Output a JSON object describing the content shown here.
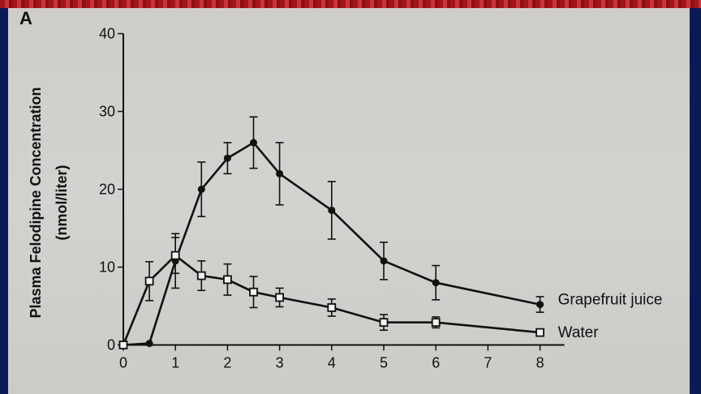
{
  "panel_label": "A",
  "chart_data": {
    "type": "line",
    "title": "",
    "xlabel": "",
    "ylabel": "Plasma Felodipine Concentration (nmol/liter)",
    "ylabel_lines": [
      "Plasma Felodipine Concentration",
      "(nmol/liter)"
    ],
    "xlim": [
      0,
      8
    ],
    "ylim": [
      0,
      40
    ],
    "x_ticks": [
      0,
      1,
      2,
      3,
      4,
      5,
      6,
      7,
      8
    ],
    "y_ticks": [
      0,
      10,
      20,
      30,
      40
    ],
    "grid": false,
    "legend_placement": "inline-right",
    "series": [
      {
        "name": "Grapefruit juice",
        "marker": "filled-circle",
        "color": "#111111",
        "x": [
          0,
          0.5,
          1,
          1.5,
          2,
          2.5,
          3,
          4,
          5,
          6,
          8
        ],
        "y": [
          0,
          0.2,
          10.8,
          20,
          24,
          26,
          22,
          17.3,
          10.8,
          8,
          5.2
        ],
        "err": [
          0,
          0,
          3.5,
          3.5,
          2,
          3.3,
          4,
          3.7,
          2.4,
          2.2,
          1
        ]
      },
      {
        "name": "Water",
        "marker": "open-square",
        "color": "#111111",
        "x": [
          0,
          0.5,
          1,
          1.5,
          2,
          2.5,
          3,
          4,
          5,
          6,
          8
        ],
        "y": [
          0,
          8.2,
          11.5,
          8.9,
          8.4,
          6.8,
          6.1,
          4.8,
          2.9,
          2.9,
          1.6
        ],
        "err": [
          0,
          2.5,
          2.3,
          1.9,
          2,
          2,
          1.2,
          1.1,
          1,
          0.7,
          0.4
        ]
      }
    ]
  }
}
